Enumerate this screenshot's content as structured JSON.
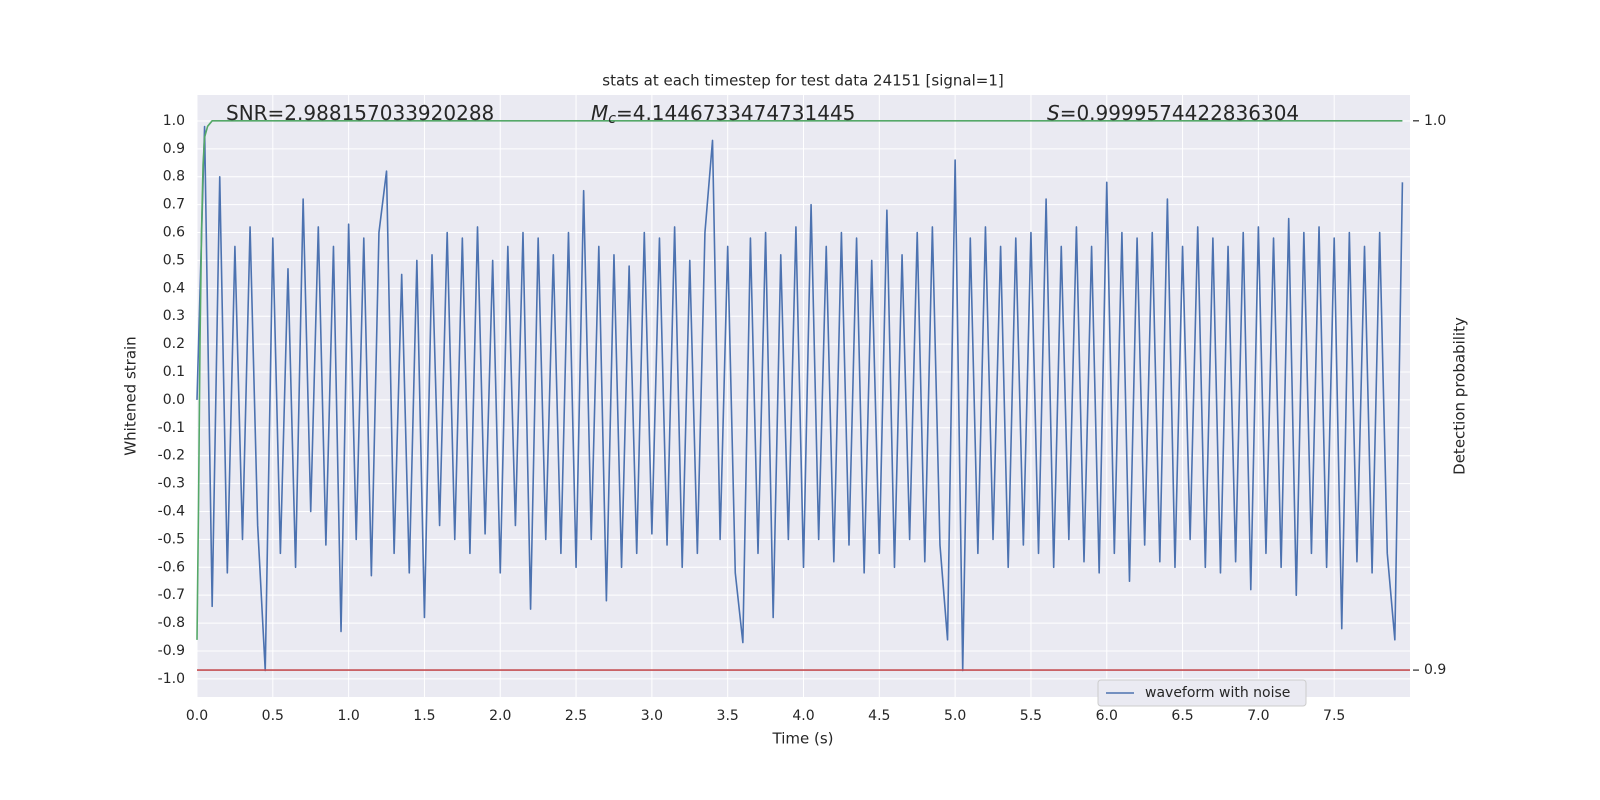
{
  "chart_data": {
    "type": "line",
    "title": "stats at each timestep for test data 24151 [signal=1]",
    "xlabel": "Time (s)",
    "ylabel": "Whitened strain",
    "y2label": "Detection probability",
    "annotations": [
      [
        "SNR=2.988157033920288"
      ],
      [
        "M",
        "c",
        "=4.1446733474731445"
      ],
      [
        "S",
        "=0.9999574422836304"
      ]
    ],
    "xlim": [
      0,
      8.0
    ],
    "ylim": [
      -1.065,
      1.093
    ],
    "y2lim": [
      0.8951,
      1.0047
    ],
    "xticks": [
      {
        "value": 0,
        "label": "0.0"
      },
      0.5,
      {
        "value": 1,
        "label": "1.0"
      },
      1.5,
      {
        "value": 2,
        "label": "2.0"
      },
      2.5,
      {
        "value": 3,
        "label": "3.0"
      },
      3.5,
      {
        "value": 4,
        "label": "4.0"
      },
      4.5,
      {
        "value": 5,
        "label": "5.0"
      },
      5.5,
      {
        "value": 6,
        "label": "6.0"
      },
      6.5,
      {
        "value": 7,
        "label": "7.0"
      },
      7.5
    ],
    "yticks": [
      {
        "value": 1,
        "label": "1.0"
      },
      0.9,
      0.8,
      0.7,
      0.6,
      0.5,
      0.4,
      0.3,
      0.2,
      0.1,
      {
        "value": 0,
        "label": "0.0"
      },
      {
        "value": -0.1,
        "label": "-0.1"
      },
      {
        "value": -0.2,
        "label": "-0.2"
      },
      {
        "value": -0.3,
        "label": "-0.3"
      },
      {
        "value": -0.4,
        "label": "-0.4"
      },
      {
        "value": -0.5,
        "label": "-0.5"
      },
      {
        "value": -0.6,
        "label": "-0.6"
      },
      {
        "value": -0.7,
        "label": "-0.7"
      },
      {
        "value": -0.8,
        "label": "-0.8"
      },
      {
        "value": -0.9,
        "label": "-0.9"
      },
      {
        "value": -1,
        "label": "-1.0"
      }
    ],
    "y2ticks": [
      {
        "value": 1,
        "label": "1.0"
      },
      0.9
    ],
    "grid": true,
    "legend": "lower right",
    "series": [
      {
        "name": "waveform with noise",
        "color": "#4c72b0",
        "x": [
          0,
          0.05,
          0.1,
          0.15,
          0.2,
          0.25,
          0.3,
          0.35,
          0.4,
          0.45,
          0.5,
          0.55,
          0.6,
          0.65,
          0.7,
          0.75,
          0.8,
          0.85,
          0.9,
          0.95,
          1,
          1.05,
          1.1,
          1.15,
          1.2,
          1.25,
          1.3,
          1.35,
          1.4,
          1.45,
          1.5,
          1.55,
          1.6,
          1.65,
          1.7,
          1.75,
          1.8,
          1.85,
          1.9,
          1.95,
          2,
          2.05,
          2.1,
          2.15,
          2.2,
          2.25,
          2.3,
          2.35,
          2.4,
          2.45,
          2.5,
          2.55,
          2.6,
          2.65,
          2.7,
          2.75,
          2.8,
          2.85,
          2.9,
          2.95,
          3,
          3.05,
          3.1,
          3.15,
          3.2,
          3.25,
          3.3,
          3.35,
          3.4,
          3.45,
          3.5,
          3.55,
          3.6,
          3.65,
          3.7,
          3.75,
          3.8,
          3.85,
          3.9,
          3.95,
          4,
          4.05,
          4.1,
          4.15,
          4.2,
          4.25,
          4.3,
          4.35,
          4.4,
          4.45,
          4.5,
          4.55,
          4.6,
          4.65,
          4.7,
          4.75,
          4.8,
          4.85,
          4.9,
          4.95,
          5,
          5.05,
          5.1,
          5.15,
          5.2,
          5.25,
          5.3,
          5.35,
          5.4,
          5.45,
          5.5,
          5.55,
          5.6,
          5.65,
          5.7,
          5.75,
          5.8,
          5.85,
          5.9,
          5.95,
          6,
          6.05,
          6.1,
          6.15,
          6.2,
          6.25,
          6.3,
          6.35,
          6.4,
          6.45,
          6.5,
          6.55,
          6.6,
          6.65,
          6.7,
          6.75,
          6.8,
          6.85,
          6.9,
          6.95,
          7,
          7.05,
          7.1,
          7.15,
          7.2,
          7.25,
          7.3,
          7.35,
          7.4,
          7.45,
          7.5,
          7.55,
          7.6,
          7.65,
          7.7,
          7.75,
          7.8,
          7.85,
          7.9,
          7.95
        ],
        "values": [
          0,
          0.98,
          -0.74,
          0.8,
          -0.62,
          0.55,
          -0.5,
          0.62,
          -0.45,
          -0.97,
          0.58,
          -0.55,
          0.47,
          -0.6,
          0.72,
          -0.4,
          0.62,
          -0.52,
          0.55,
          -0.83,
          0.63,
          -0.5,
          0.58,
          -0.63,
          0.6,
          0.82,
          -0.55,
          0.45,
          -0.62,
          0.5,
          -0.78,
          0.52,
          -0.45,
          0.6,
          -0.5,
          0.58,
          -0.55,
          0.62,
          -0.48,
          0.5,
          -0.62,
          0.55,
          -0.45,
          0.6,
          -0.75,
          0.58,
          -0.5,
          0.52,
          -0.55,
          0.6,
          -0.6,
          0.75,
          -0.5,
          0.55,
          -0.72,
          0.52,
          -0.6,
          0.48,
          -0.55,
          0.6,
          -0.48,
          0.58,
          -0.52,
          0.62,
          -0.6,
          0.5,
          -0.55,
          0.6,
          0.93,
          -0.5,
          0.55,
          -0.62,
          -0.87,
          0.58,
          -0.55,
          0.6,
          -0.78,
          0.52,
          -0.5,
          0.62,
          -0.6,
          0.7,
          -0.5,
          0.55,
          -0.58,
          0.6,
          -0.52,
          0.58,
          -0.62,
          0.5,
          -0.55,
          0.68,
          -0.6,
          0.52,
          -0.5,
          0.6,
          -0.58,
          0.62,
          -0.52,
          -0.86,
          0.86,
          -0.97,
          0.58,
          -0.55,
          0.62,
          -0.5,
          0.55,
          -0.6,
          0.58,
          -0.52,
          0.6,
          -0.55,
          0.72,
          -0.6,
          0.55,
          -0.5,
          0.62,
          -0.58,
          0.55,
          -0.62,
          0.78,
          -0.55,
          0.6,
          -0.65,
          0.58,
          -0.52,
          0.6,
          -0.58,
          0.72,
          -0.6,
          0.55,
          -0.5,
          0.62,
          -0.6,
          0.58,
          -0.62,
          0.55,
          -0.58,
          0.6,
          -0.68,
          0.62,
          -0.55,
          0.58,
          -0.6,
          0.65,
          -0.7,
          0.6,
          -0.55,
          0.62,
          -0.6,
          0.58,
          -0.82,
          0.6,
          -0.58,
          0.55,
          -0.62,
          0.6,
          -0.55,
          -0.86,
          0.78
        ]
      },
      {
        "color": "#55a868",
        "axis": "y2",
        "x": [
          0,
          0.01,
          0.02,
          0.03,
          0.04,
          0.05,
          0.07,
          0.1,
          7.95
        ],
        "values": [
          0.9055,
          0.93,
          0.96,
          0.98,
          0.992,
          0.997,
          0.999,
          1.0,
          1.0
        ]
      },
      {
        "color": "#c44e52",
        "axis": "y2",
        "x": [
          0,
          8.0
        ],
        "values": [
          0.9,
          0.9
        ]
      }
    ]
  }
}
